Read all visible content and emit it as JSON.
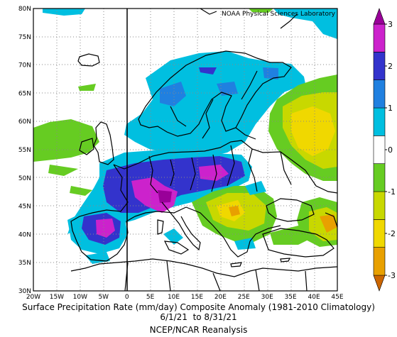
{
  "credit": "NOAA Physical Sciences Laboratory",
  "caption": {
    "line1": "Surface Precipitation Rate (mm/day) Composite Anomaly (1981-2010 Climatology)",
    "line2": "6/1/21  to 8/31/21",
    "line3": "NCEP/NCAR Reanalysis"
  },
  "map": {
    "lon_range": [
      -20,
      45
    ],
    "lat_range": [
      30,
      80
    ],
    "lon_labels": [
      "20W",
      "15W",
      "10W",
      "5W",
      "0",
      "5E",
      "10E",
      "15E",
      "20E",
      "25E",
      "30E",
      "35E",
      "40E",
      "45E"
    ],
    "lat_labels": [
      "30N",
      "35N",
      "40N",
      "45N",
      "50N",
      "55N",
      "60N",
      "65N",
      "70N",
      "75N",
      "80N"
    ]
  },
  "colorbar": {
    "range": [
      -3,
      3
    ],
    "labels": [
      "3",
      "2",
      "1",
      "0",
      "-1",
      "-2",
      "-3"
    ],
    "colors": [
      "#cc6600",
      "#e8a000",
      "#f0d800",
      "#c8d800",
      "#66cc22",
      "#ffffff",
      "#00bfe0",
      "#2080e0",
      "#3333cc",
      "#cc22cc",
      "#990099"
    ]
  },
  "colors": {
    "green": "#66cc22",
    "lime": "#c8d800",
    "yellow": "#f0d800",
    "orange": "#e8a000",
    "cyan": "#00bfe0",
    "blue": "#2080e0",
    "indigo": "#3333cc",
    "magenta": "#cc22cc"
  }
}
